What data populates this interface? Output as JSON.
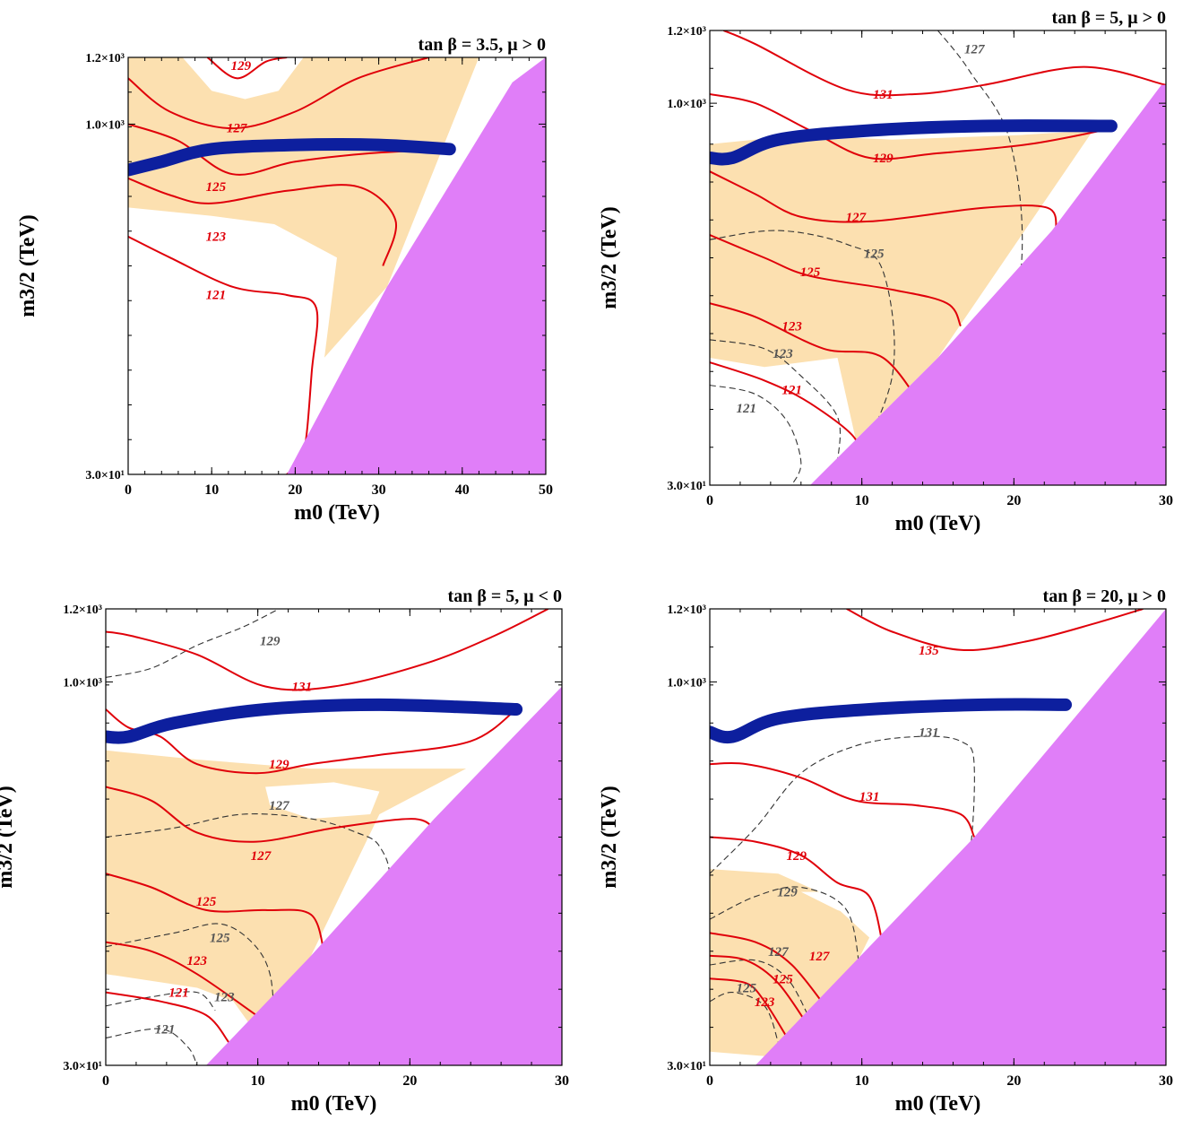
{
  "figure": {
    "panels": [
      {
        "id": "p1",
        "title": "tan β = 3.5, μ > 0",
        "xlabel": "m0 (TeV)",
        "ylabel": "m3/2 (TeV)",
        "x_ticks": [
          "0",
          "10",
          "20",
          "30",
          "40",
          "50"
        ],
        "y_ticks": [
          "3.0×10¹",
          "1.0×10³",
          "1.2×10³"
        ]
      },
      {
        "id": "p2",
        "title": "tan β = 5, μ > 0",
        "xlabel": "m0 (TeV)",
        "ylabel": "m3/2 (TeV)",
        "x_ticks": [
          "0",
          "10",
          "20",
          "30"
        ],
        "y_ticks": [
          "3.0×10¹",
          "1.0×10³",
          "1.2×10³"
        ]
      },
      {
        "id": "p3",
        "title": "tan β = 5, μ < 0",
        "xlabel": "m0 (TeV)",
        "ylabel": "m3/2 (TeV)",
        "x_ticks": [
          "0",
          "10",
          "20",
          "30"
        ],
        "y_ticks": [
          "3.0×10¹",
          "1.0×10³",
          "1.2×10³"
        ]
      },
      {
        "id": "p4",
        "title": "tan β = 20, μ > 0",
        "xlabel": "m0 (TeV)",
        "ylabel": "m3/2 (TeV)",
        "x_ticks": [
          "0",
          "10",
          "20",
          "30"
        ],
        "y_ticks": [
          "3.0×10¹",
          "1.0×10³",
          "1.2×10³"
        ]
      }
    ]
  },
  "chart_data": [
    {
      "type": "contour",
      "title": "tan β = 3.5, μ > 0",
      "xlabel": "m0 (TeV)",
      "ylabel": "m3/2 (TeV)",
      "xlim": [
        0,
        50
      ],
      "ylim": [
        30,
        1200
      ],
      "x_ticks": [
        0,
        10,
        20,
        30,
        40,
        50
      ],
      "y_ticks": [
        30,
        1000,
        1200
      ],
      "red_contour_labels": [
        "129",
        "127",
        "125",
        "123",
        "121"
      ],
      "gray_contour_labels": [],
      "colors": {
        "excluded": "#e07ef8",
        "allowed_band": "#fce0b0",
        "dark_matter_band": "#0d1f9e",
        "red_contours": "#e0000a"
      }
    },
    {
      "type": "contour",
      "title": "tan β = 5, μ > 0",
      "xlabel": "m0 (TeV)",
      "ylabel": "m3/2 (TeV)",
      "xlim": [
        0,
        30
      ],
      "ylim": [
        30,
        1200
      ],
      "x_ticks": [
        0,
        10,
        20,
        30
      ],
      "y_ticks": [
        30,
        1000,
        1200
      ],
      "red_contour_labels": [
        "131",
        "129",
        "127",
        "125",
        "123",
        "121"
      ],
      "gray_contour_labels": [
        "127",
        "125",
        "123",
        "121"
      ],
      "colors": {
        "excluded": "#e07ef8",
        "allowed_band": "#fce0b0",
        "dark_matter_band": "#0d1f9e",
        "red_contours": "#e0000a",
        "gray_contours": "#555555"
      }
    },
    {
      "type": "contour",
      "title": "tan β = 5, μ < 0",
      "xlabel": "m0 (TeV)",
      "ylabel": "m3/2 (TeV)",
      "xlim": [
        0,
        30
      ],
      "ylim": [
        30,
        1200
      ],
      "x_ticks": [
        0,
        10,
        20,
        30
      ],
      "y_ticks": [
        30,
        1000,
        1200
      ],
      "red_contour_labels": [
        "131",
        "129",
        "127",
        "125",
        "123",
        "121"
      ],
      "gray_contour_labels": [
        "129",
        "127",
        "125",
        "123",
        "121"
      ],
      "colors": {
        "excluded": "#e07ef8",
        "allowed_band": "#fce0b0",
        "dark_matter_band": "#0d1f9e",
        "red_contours": "#e0000a",
        "gray_contours": "#555555"
      }
    },
    {
      "type": "contour",
      "title": "tan β = 20, μ > 0",
      "xlabel": "m0 (TeV)",
      "ylabel": "m3/2 (TeV)",
      "xlim": [
        0,
        30
      ],
      "ylim": [
        30,
        1200
      ],
      "x_ticks": [
        0,
        10,
        20,
        30
      ],
      "y_ticks": [
        30,
        1000,
        1200
      ],
      "red_contour_labels": [
        "135",
        "131",
        "129",
        "127",
        "125",
        "123"
      ],
      "gray_contour_labels": [
        "131",
        "129",
        "127",
        "125"
      ],
      "colors": {
        "excluded": "#e07ef8",
        "allowed_band": "#fce0b0",
        "dark_matter_band": "#0d1f9e",
        "red_contours": "#e0000a",
        "gray_contours": "#555555"
      }
    }
  ]
}
